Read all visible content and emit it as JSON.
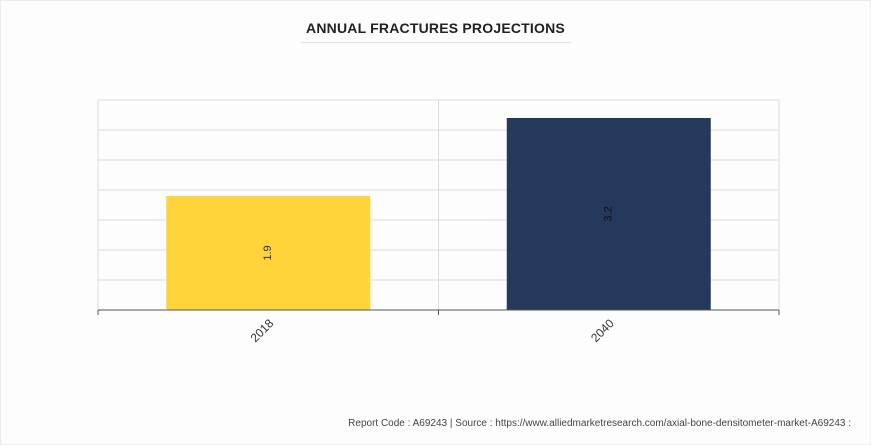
{
  "chart_data": {
    "type": "bar",
    "title": "ANNUAL FRACTURES PROJECTIONS",
    "categories": [
      "2018",
      "2040"
    ],
    "values": [
      1.9,
      3.2
    ],
    "data_labels": [
      "1.9",
      "3.2"
    ],
    "colors": [
      "#ffd33a",
      "#25395c"
    ],
    "ylim": [
      0,
      3.5
    ],
    "grid": true,
    "xlabel": "",
    "ylabel": ""
  },
  "footer": {
    "text": "Report Code : A69243  |  Source : https://www.alliedmarketresearch.com/axial-bone-densitometer-market-A69243 :"
  }
}
